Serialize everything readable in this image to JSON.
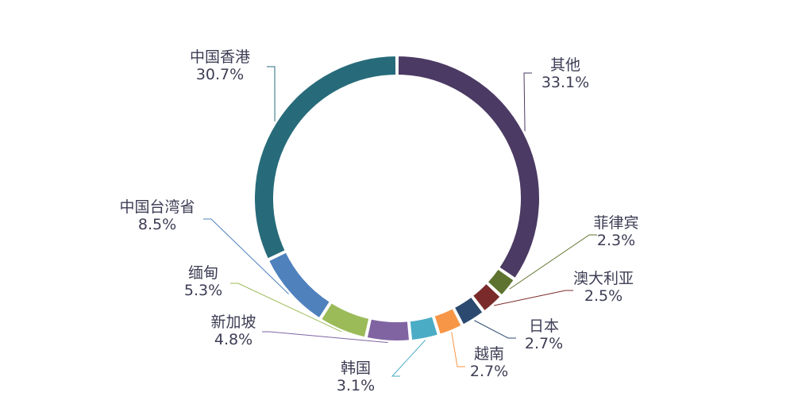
{
  "chart_data": {
    "type": "pie",
    "style": "donut",
    "title": "",
    "slices": [
      {
        "label": "其他",
        "value": 33.1,
        "display": "33.1%",
        "color": "#4b3a63"
      },
      {
        "label": "菲律宾",
        "value": 2.3,
        "display": "2.3%",
        "color": "#5e732f"
      },
      {
        "label": "澳大利亚",
        "value": 2.5,
        "display": "2.5%",
        "color": "#7a2a2a"
      },
      {
        "label": "日本",
        "value": 2.7,
        "display": "2.7%",
        "color": "#2c4a70"
      },
      {
        "label": "越南",
        "value": 2.7,
        "display": "2.7%",
        "color": "#f79646"
      },
      {
        "label": "韩国",
        "value": 3.1,
        "display": "3.1%",
        "color": "#4bacc6"
      },
      {
        "label": "新加坡",
        "value": 4.8,
        "display": "4.8%",
        "color": "#8064a2"
      },
      {
        "label": "缅甸",
        "value": 5.3,
        "display": "5.3%",
        "color": "#9bbb59"
      },
      {
        "label": "中国台湾省",
        "value": 8.5,
        "display": "8.5%",
        "color": "#c0504d"
      },
      {
        "label": "中国香港",
        "value": 30.7,
        "display": "30.7%",
        "color": "#4f81bd"
      }
    ]
  }
}
